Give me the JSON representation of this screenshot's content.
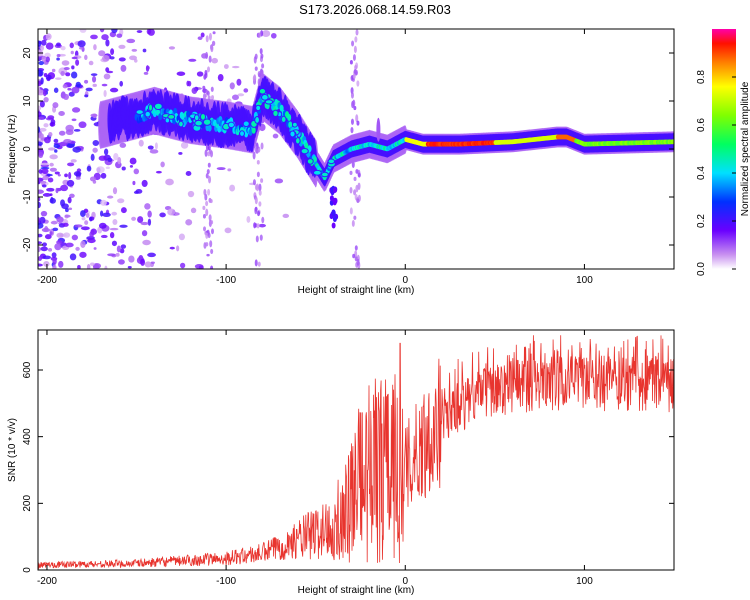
{
  "title": "S173.2026.068.14.59.R03",
  "chart_data": [
    {
      "type": "heatmap",
      "name": "spectrogram",
      "xlabel": "Height of straight line (km)",
      "ylabel": "Frequency (Hz)",
      "xlim": [
        -205,
        150
      ],
      "ylim": [
        -25,
        25
      ],
      "xticks": [
        -200,
        -100,
        0,
        100
      ],
      "yticks": [
        20,
        10,
        0,
        -10,
        -20
      ],
      "colorbar": {
        "label": "Normalized spectral amplitude",
        "range": [
          0,
          1
        ],
        "ticks": [
          "0.0",
          "0.2",
          "0.4",
          "0.6",
          "0.8"
        ]
      },
      "ridge": {
        "description_points_km_hz": [
          [
            -160,
            6
          ],
          [
            -140,
            8
          ],
          [
            -120,
            6
          ],
          [
            -100,
            5
          ],
          [
            -85,
            4
          ],
          [
            -80,
            11
          ],
          [
            -70,
            8
          ],
          [
            -60,
            3
          ],
          [
            -50,
            -3
          ],
          [
            -45,
            -6
          ],
          [
            -40,
            -2
          ],
          [
            -30,
            0
          ],
          [
            -20,
            1
          ],
          [
            -10,
            0
          ],
          [
            0,
            2
          ],
          [
            10,
            1
          ],
          [
            30,
            1
          ],
          [
            60,
            1.5
          ],
          [
            85,
            2.5
          ],
          [
            90,
            2.5
          ],
          [
            100,
            1
          ],
          [
            150,
            1.5
          ]
        ]
      }
    },
    {
      "type": "line",
      "name": "snr",
      "xlabel": "Height of straight line (km)",
      "ylabel": "SNR (10 * v/v)",
      "xlim": [
        -205,
        150
      ],
      "ylim": [
        0,
        720
      ],
      "xticks": [
        -200,
        -100,
        0,
        100
      ],
      "yticks": [
        0,
        200,
        400,
        600
      ],
      "color": "#e8342e",
      "envelope_km_snr": [
        [
          -205,
          15
        ],
        [
          -150,
          20
        ],
        [
          -100,
          35
        ],
        [
          -80,
          50
        ],
        [
          -60,
          90
        ],
        [
          -40,
          130
        ],
        [
          -30,
          230
        ],
        [
          -20,
          300
        ],
        [
          -10,
          340
        ],
        [
          -5,
          320
        ],
        [
          0,
          300
        ],
        [
          10,
          380
        ],
        [
          20,
          450
        ],
        [
          40,
          520
        ],
        [
          60,
          550
        ],
        [
          80,
          560
        ],
        [
          100,
          560
        ],
        [
          120,
          560
        ],
        [
          150,
          555
        ]
      ]
    }
  ]
}
